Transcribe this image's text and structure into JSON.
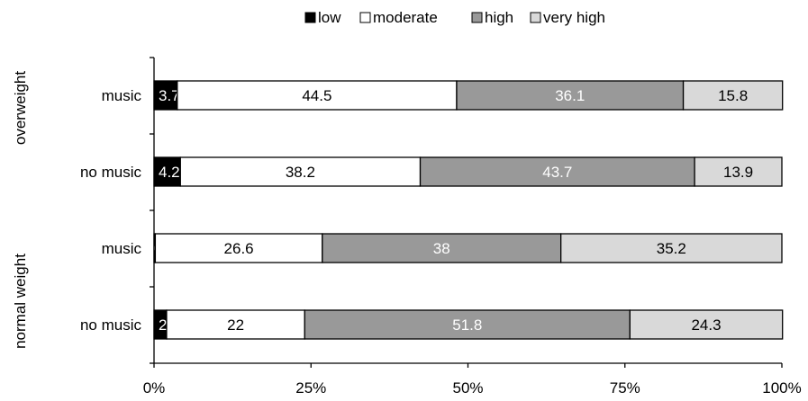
{
  "chart_data": {
    "type": "bar",
    "orientation": "horizontal",
    "stacked": true,
    "percent": true,
    "title": "",
    "xlabel": "",
    "ylabel": "",
    "xlim": [
      0,
      100
    ],
    "x_ticks": [
      "0%",
      "25%",
      "50%",
      "75%",
      "100%"
    ],
    "legend_position": "top-center",
    "groups": [
      "overweight",
      "normal weight"
    ],
    "categories": [
      "music",
      "no music",
      "music",
      "no music"
    ],
    "category_group": [
      0,
      0,
      1,
      1
    ],
    "series": [
      {
        "name": "low",
        "color": "#000000",
        "label_color": "#ffffff",
        "values": [
          3.7,
          4.2,
          0.2,
          2
        ]
      },
      {
        "name": "moderate",
        "color": "#ffffff",
        "label_color": "#000000",
        "values": [
          44.5,
          38.2,
          26.6,
          22
        ]
      },
      {
        "name": "high",
        "color": "#999999",
        "label_color": "#ffffff",
        "values": [
          36.1,
          43.7,
          38,
          51.8
        ]
      },
      {
        "name": "very high",
        "color": "#d9d9d9",
        "label_color": "#000000",
        "values": [
          15.8,
          13.9,
          35.2,
          24.3
        ]
      }
    ]
  }
}
